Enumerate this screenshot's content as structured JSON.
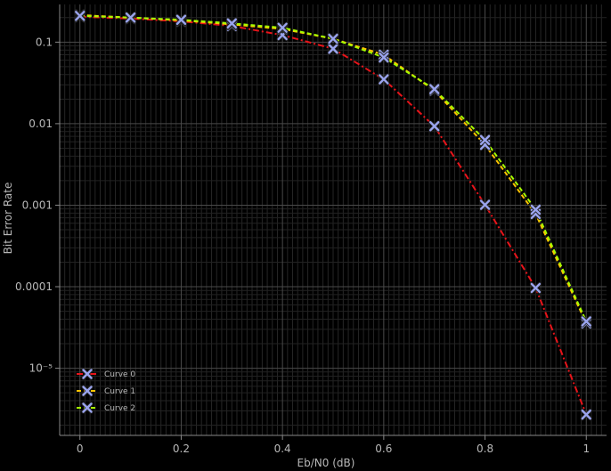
{
  "chart_data": {
    "type": "line",
    "title": "",
    "xlabel": "Eb/N0 (dB)",
    "ylabel": "Bit Error Rate",
    "xlim": [
      -0.04,
      1.04
    ],
    "ylim": [
      1.5e-06,
      0.29
    ],
    "yscale": "log",
    "grid": true,
    "minor_grid": true,
    "legend_position": "bottom-left",
    "x_ticks": [
      0,
      0.2,
      0.4,
      0.6,
      0.8,
      1
    ],
    "x_tick_labels": [
      "0",
      "0.2",
      "0.4",
      "0.6",
      "0.8",
      "1"
    ],
    "y_ticks": [
      0.1,
      0.01,
      0.001,
      0.0001,
      1e-05
    ],
    "y_tick_labels": [
      "0.1",
      "0.01",
      "0.001",
      "0.0001",
      "10⁻⁵"
    ],
    "x": [
      0,
      0.1,
      0.2,
      0.3,
      0.4,
      0.5,
      0.6,
      0.7,
      0.8,
      0.9,
      1.0
    ],
    "marker_color": "#9aa4ee",
    "series": [
      {
        "name": "Curve 0",
        "color": "#e8141a",
        "dash": "dashdot",
        "values": [
          0.205,
          0.195,
          0.18,
          0.158,
          0.122,
          0.083,
          0.035,
          0.0093,
          0.00101,
          9.65e-05,
          2.7e-06
        ]
      },
      {
        "name": "Curve 1",
        "color": "#ffc400",
        "dash": "dashed",
        "values": [
          0.215,
          0.2,
          0.185,
          0.165,
          0.145,
          0.11,
          0.07,
          0.0255,
          0.0055,
          0.00078,
          3.55e-05
        ]
      },
      {
        "name": "Curve 2",
        "color": "#a6ff00",
        "dash": "dashed",
        "values": [
          0.21,
          0.2,
          0.188,
          0.17,
          0.15,
          0.11,
          0.065,
          0.0265,
          0.0063,
          0.00088,
          3.75e-05
        ]
      }
    ]
  }
}
